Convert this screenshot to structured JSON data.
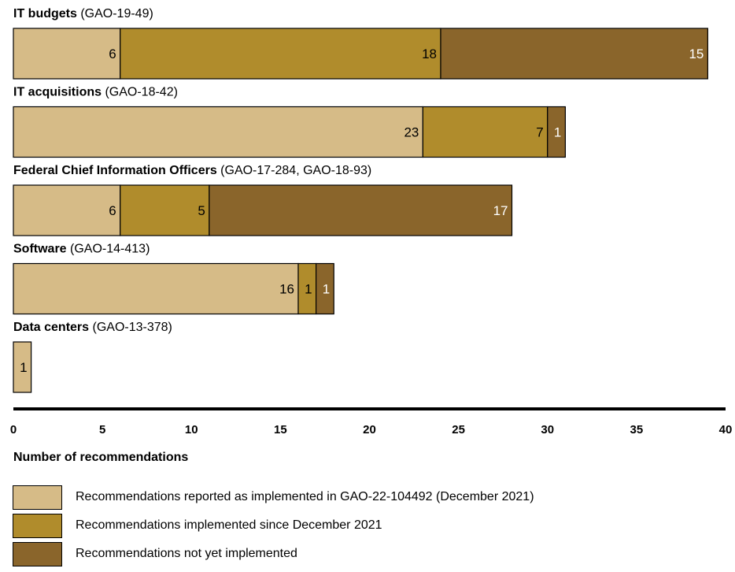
{
  "chart_data": {
    "type": "bar",
    "orientation": "horizontal",
    "stacked": true,
    "xlabel": "Number of recommendations",
    "xlim": [
      0,
      40
    ],
    "xticks": [
      "0",
      "5",
      "10",
      "15",
      "20",
      "25",
      "30",
      "35",
      "40"
    ],
    "categories": [
      {
        "name": "IT budgets",
        "ref": "(GAO-19-49)"
      },
      {
        "name": "IT acquisitions",
        "ref": "(GAO-18-42)"
      },
      {
        "name": "Federal Chief Information Officers",
        "ref": "(GAO-17-284, GAO-18-93)"
      },
      {
        "name": "Software",
        "ref": "(GAO-14-413)"
      },
      {
        "name": "Data centers",
        "ref": "(GAO-13-378)"
      }
    ],
    "series": [
      {
        "name": "Recommendations reported as implemented in GAO-22-104492 (December 2021)",
        "color": "#d6bb87",
        "label_color": "#000000",
        "values": [
          6,
          23,
          6,
          16,
          1
        ]
      },
      {
        "name": "Recommendations implemented since December 2021",
        "color": "#b08c2c",
        "label_color": "#000000",
        "values": [
          18,
          7,
          5,
          1,
          0
        ]
      },
      {
        "name": "Recommendations not yet implemented",
        "color": "#8a652b",
        "label_color": "#ffffff",
        "values": [
          15,
          1,
          17,
          1,
          0
        ]
      }
    ],
    "grid": false,
    "legend_position": "bottom"
  }
}
